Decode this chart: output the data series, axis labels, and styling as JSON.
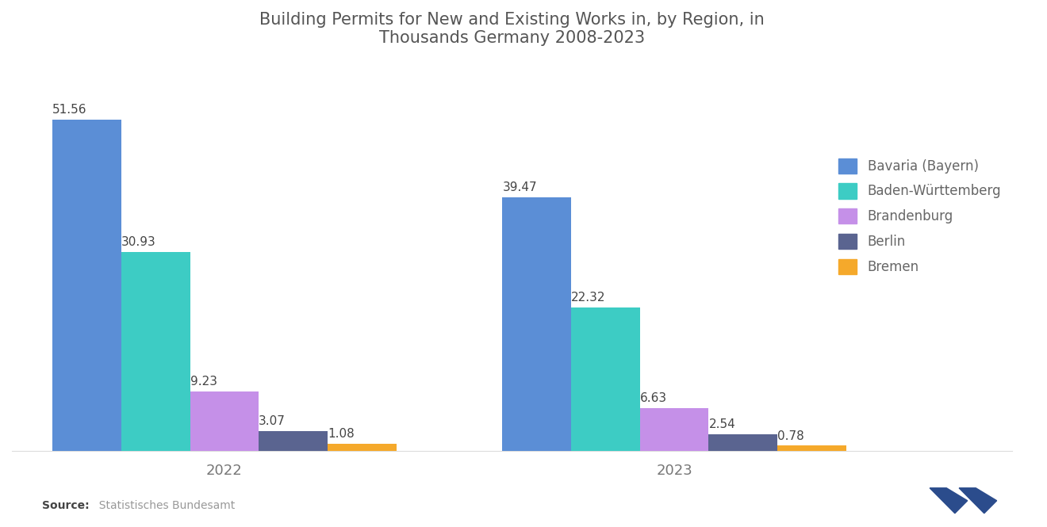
{
  "title": "Building Permits for New and Existing Works in, by Region, in\nThousands Germany 2008-2023",
  "years": [
    "2022",
    "2023"
  ],
  "categories": [
    "Bavaria (Bayern)",
    "Baden-Württemberg",
    "Brandenburg",
    "Berlin",
    "Bremen"
  ],
  "values": {
    "2022": [
      51.56,
      30.93,
      9.23,
      3.07,
      1.08
    ],
    "2023": [
      39.47,
      22.32,
      6.63,
      2.54,
      0.78
    ]
  },
  "colors": [
    "#5B8ED6",
    "#3DCCC4",
    "#C590E8",
    "#5A6490",
    "#F5A92B"
  ],
  "bar_width": 0.055,
  "background_color": "#FFFFFF",
  "title_color": "#555555",
  "label_color": "#555555",
  "source_bold": "Source:",
  "source_rest": "  Statistisches Bundesamt",
  "legend_labels": [
    "Bavaria (Bayern)",
    "Baden-Württemberg",
    "Brandenburg",
    "Berlin",
    "Bremen"
  ],
  "group_centers": [
    0.22,
    0.58
  ],
  "ylim": [
    0,
    63
  ],
  "label_fontsize": 11,
  "tick_fontsize": 13,
  "title_fontsize": 15
}
